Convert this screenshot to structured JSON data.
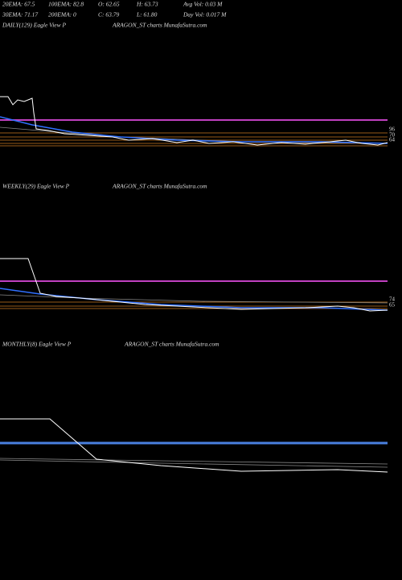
{
  "header": {
    "rows": [
      [
        "20EMA: 67.5",
        "100EMA: 82.8",
        "O: 62.65",
        "H: 63.73",
        "Avg Vol: 0.03 M"
      ],
      [
        "30EMA: 71.17",
        "200EMA: 0",
        "C: 63.79",
        "L: 61.80",
        "Day Vol: 0.017 M"
      ]
    ]
  },
  "panels": [
    {
      "label": "DAILY(129) Eagle   View  P",
      "source": "ARAGON_ST charts MunafaSutra.com",
      "price_labels": [
        "96",
        "70",
        "64"
      ]
    },
    {
      "label": "WEEKLY(29) Eagle   View  P",
      "source": "ARAGON_ST charts MunafaSutra.com",
      "price_labels": [
        "74",
        "65"
      ]
    },
    {
      "label": "MONTHLY(8) Eagle   View  P",
      "source": "ARAGON_ST charts MunafaSutra.com",
      "price_labels": []
    }
  ]
}
